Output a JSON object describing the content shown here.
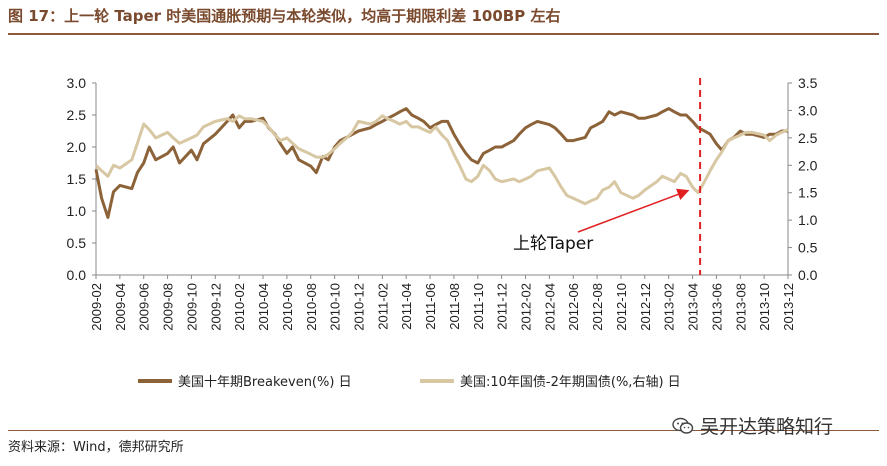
{
  "header": {
    "title": "图 17：上一轮 Taper 时美国通胀预期与本轮类似，均高于期限利差 100BP 左右"
  },
  "footer": {
    "source": "资料来源：Wind，德邦研究所",
    "watermark": "吴开达策略知行",
    "watermark_icon": "wechat-icon"
  },
  "colors": {
    "brand": "#8b5a3c",
    "series_dark": "#8c6239",
    "series_light": "#d8c7a3",
    "marker_line": "#e02020",
    "arrow": "#e02020"
  },
  "chart_data": {
    "type": "line",
    "title": "",
    "xlabel": "",
    "ylabel": "",
    "x_range": [
      "2009-02",
      "2013-12"
    ],
    "x_ticks": [
      "2009-02",
      "2009-04",
      "2009-06",
      "2009-08",
      "2009-10",
      "2009-12",
      "2010-02",
      "2010-04",
      "2010-06",
      "2010-08",
      "2010-10",
      "2010-12",
      "2011-02",
      "2011-04",
      "2011-06",
      "2011-08",
      "2011-10",
      "2011-12",
      "2012-02",
      "2012-04",
      "2012-06",
      "2012-08",
      "2012-10",
      "2012-12",
      "2013-02",
      "2013-04",
      "2013-06",
      "2013-08",
      "2013-10",
      "2013-12"
    ],
    "y_left": {
      "ylim": [
        0.0,
        3.0
      ],
      "ticks": [
        "0.0",
        "0.5",
        "1.0",
        "1.5",
        "2.0",
        "2.5",
        "3.0"
      ]
    },
    "y_right": {
      "ylim": [
        0.0,
        3.5
      ],
      "ticks": [
        "0.0",
        "0.5",
        "1.0",
        "1.5",
        "2.0",
        "2.5",
        "3.0",
        "3.5"
      ]
    },
    "grid": false,
    "legend_position": "bottom",
    "series": [
      {
        "name": "美国十年期Breakeven(%) 日",
        "axis": "left",
        "color": "#8c6239",
        "points": [
          [
            "2009-02",
            1.65
          ],
          [
            "2009-02-15",
            1.2
          ],
          [
            "2009-03",
            0.9
          ],
          [
            "2009-03-15",
            1.3
          ],
          [
            "2009-04",
            1.4
          ],
          [
            "2009-05",
            1.35
          ],
          [
            "2009-05-15",
            1.6
          ],
          [
            "2009-06",
            1.75
          ],
          [
            "2009-06-15",
            2.0
          ],
          [
            "2009-07",
            1.8
          ],
          [
            "2009-08",
            1.9
          ],
          [
            "2009-08-15",
            2.0
          ],
          [
            "2009-09",
            1.75
          ],
          [
            "2009-10",
            1.95
          ],
          [
            "2009-10-15",
            1.8
          ],
          [
            "2009-11",
            2.05
          ],
          [
            "2009-12",
            2.2
          ],
          [
            "2010-01",
            2.4
          ],
          [
            "2010-01-15",
            2.5
          ],
          [
            "2010-02",
            2.3
          ],
          [
            "2010-02-15",
            2.4
          ],
          [
            "2010-03",
            2.4
          ],
          [
            "2010-04",
            2.45
          ],
          [
            "2010-04-15",
            2.3
          ],
          [
            "2010-05",
            2.2
          ],
          [
            "2010-05-15",
            2.05
          ],
          [
            "2010-06",
            1.9
          ],
          [
            "2010-06-15",
            2.0
          ],
          [
            "2010-07",
            1.8
          ],
          [
            "2010-08",
            1.7
          ],
          [
            "2010-08-15",
            1.6
          ],
          [
            "2010-09",
            1.85
          ],
          [
            "2010-09-15",
            1.8
          ],
          [
            "2010-10",
            2.0
          ],
          [
            "2010-10-15",
            2.1
          ],
          [
            "2010-11",
            2.15
          ],
          [
            "2010-12",
            2.25
          ],
          [
            "2011-01",
            2.3
          ],
          [
            "2011-01-15",
            2.35
          ],
          [
            "2011-02",
            2.4
          ],
          [
            "2011-02-15",
            2.45
          ],
          [
            "2011-03",
            2.5
          ],
          [
            "2011-03-15",
            2.55
          ],
          [
            "2011-04",
            2.6
          ],
          [
            "2011-04-15",
            2.5
          ],
          [
            "2011-05",
            2.45
          ],
          [
            "2011-05-15",
            2.4
          ],
          [
            "2011-06",
            2.3
          ],
          [
            "2011-06-15",
            2.35
          ],
          [
            "2011-07",
            2.4
          ],
          [
            "2011-07-15",
            2.4
          ],
          [
            "2011-08",
            2.2
          ],
          [
            "2011-08-15",
            2.05
          ],
          [
            "2011-09",
            1.9
          ],
          [
            "2011-09-15",
            1.8
          ],
          [
            "2011-10",
            1.75
          ],
          [
            "2011-10-15",
            1.9
          ],
          [
            "2011-11",
            1.95
          ],
          [
            "2011-11-15",
            2.0
          ],
          [
            "2011-12",
            2.0
          ],
          [
            "2012-01",
            2.1
          ],
          [
            "2012-01-15",
            2.2
          ],
          [
            "2012-02",
            2.3
          ],
          [
            "2012-02-15",
            2.35
          ],
          [
            "2012-03",
            2.4
          ],
          [
            "2012-04",
            2.35
          ],
          [
            "2012-04-15",
            2.3
          ],
          [
            "2012-05",
            2.2
          ],
          [
            "2012-05-15",
            2.1
          ],
          [
            "2012-06",
            2.1
          ],
          [
            "2012-07",
            2.15
          ],
          [
            "2012-07-15",
            2.3
          ],
          [
            "2012-08",
            2.35
          ],
          [
            "2012-08-15",
            2.4
          ],
          [
            "2012-09",
            2.55
          ],
          [
            "2012-09-15",
            2.5
          ],
          [
            "2012-10",
            2.55
          ],
          [
            "2012-11",
            2.5
          ],
          [
            "2012-11-15",
            2.45
          ],
          [
            "2012-12",
            2.45
          ],
          [
            "2013-01",
            2.5
          ],
          [
            "2013-01-15",
            2.55
          ],
          [
            "2013-02",
            2.6
          ],
          [
            "2013-02-15",
            2.55
          ],
          [
            "2013-03",
            2.5
          ],
          [
            "2013-03-15",
            2.5
          ],
          [
            "2013-04",
            2.4
          ],
          [
            "2013-04-15",
            2.3
          ],
          [
            "2013-05",
            2.25
          ],
          [
            "2013-05-15",
            2.2
          ],
          [
            "2013-06",
            2.05
          ],
          [
            "2013-06-15",
            1.95
          ],
          [
            "2013-07",
            2.1
          ],
          [
            "2013-07-15",
            2.15
          ],
          [
            "2013-08",
            2.25
          ],
          [
            "2013-08-15",
            2.2
          ],
          [
            "2013-09",
            2.2
          ],
          [
            "2013-10",
            2.15
          ],
          [
            "2013-10-15",
            2.2
          ],
          [
            "2013-11",
            2.2
          ],
          [
            "2013-11-15",
            2.25
          ],
          [
            "2013-12",
            2.25
          ]
        ]
      },
      {
        "name": "美国:10年国债-2年期国债(%,右轴) 日",
        "axis": "right",
        "color": "#d8c7a3",
        "points": [
          [
            "2009-02",
            2.0
          ],
          [
            "2009-02-15",
            1.9
          ],
          [
            "2009-03",
            1.8
          ],
          [
            "2009-03-15",
            2.0
          ],
          [
            "2009-04",
            1.95
          ],
          [
            "2009-05",
            2.1
          ],
          [
            "2009-05-15",
            2.4
          ],
          [
            "2009-06",
            2.75
          ],
          [
            "2009-06-15",
            2.65
          ],
          [
            "2009-07",
            2.5
          ],
          [
            "2009-08",
            2.6
          ],
          [
            "2009-08-15",
            2.5
          ],
          [
            "2009-09",
            2.4
          ],
          [
            "2009-10",
            2.5
          ],
          [
            "2009-10-15",
            2.55
          ],
          [
            "2009-11",
            2.7
          ],
          [
            "2009-12",
            2.8
          ],
          [
            "2010-01",
            2.85
          ],
          [
            "2010-01-15",
            2.8
          ],
          [
            "2010-02",
            2.9
          ],
          [
            "2010-02-15",
            2.85
          ],
          [
            "2010-03",
            2.85
          ],
          [
            "2010-04",
            2.8
          ],
          [
            "2010-04-15",
            2.7
          ],
          [
            "2010-05",
            2.55
          ],
          [
            "2010-05-15",
            2.45
          ],
          [
            "2010-06",
            2.5
          ],
          [
            "2010-06-15",
            2.4
          ],
          [
            "2010-07",
            2.3
          ],
          [
            "2010-08",
            2.2
          ],
          [
            "2010-08-15",
            2.15
          ],
          [
            "2010-09",
            2.15
          ],
          [
            "2010-09-15",
            2.2
          ],
          [
            "2010-10",
            2.3
          ],
          [
            "2010-10-15",
            2.4
          ],
          [
            "2010-11",
            2.5
          ],
          [
            "2010-11-15",
            2.6
          ],
          [
            "2010-12",
            2.8
          ],
          [
            "2011-01",
            2.75
          ],
          [
            "2011-01-15",
            2.8
          ],
          [
            "2011-02",
            2.9
          ],
          [
            "2011-02-15",
            2.85
          ],
          [
            "2011-03",
            2.8
          ],
          [
            "2011-03-15",
            2.75
          ],
          [
            "2011-04",
            2.8
          ],
          [
            "2011-04-15",
            2.7
          ],
          [
            "2011-05",
            2.7
          ],
          [
            "2011-05-15",
            2.65
          ],
          [
            "2011-06",
            2.6
          ],
          [
            "2011-06-15",
            2.7
          ],
          [
            "2011-07",
            2.55
          ],
          [
            "2011-07-15",
            2.45
          ],
          [
            "2011-08",
            2.2
          ],
          [
            "2011-08-15",
            2.0
          ],
          [
            "2011-09",
            1.75
          ],
          [
            "2011-09-15",
            1.7
          ],
          [
            "2011-10",
            1.8
          ],
          [
            "2011-10-15",
            2.0
          ],
          [
            "2011-11",
            1.9
          ],
          [
            "2011-11-15",
            1.75
          ],
          [
            "2011-12",
            1.7
          ],
          [
            "2012-01",
            1.75
          ],
          [
            "2012-01-15",
            1.7
          ],
          [
            "2012-02",
            1.75
          ],
          [
            "2012-02-15",
            1.8
          ],
          [
            "2012-03",
            1.9
          ],
          [
            "2012-04",
            1.95
          ],
          [
            "2012-04-15",
            1.8
          ],
          [
            "2012-05",
            1.6
          ],
          [
            "2012-05-15",
            1.45
          ],
          [
            "2012-06",
            1.4
          ],
          [
            "2012-07",
            1.3
          ],
          [
            "2012-07-15",
            1.35
          ],
          [
            "2012-08",
            1.4
          ],
          [
            "2012-08-15",
            1.55
          ],
          [
            "2012-09",
            1.6
          ],
          [
            "2012-09-15",
            1.7
          ],
          [
            "2012-10",
            1.5
          ],
          [
            "2012-11",
            1.4
          ],
          [
            "2012-11-15",
            1.45
          ],
          [
            "2012-12",
            1.55
          ],
          [
            "2013-01",
            1.7
          ],
          [
            "2013-01-15",
            1.8
          ],
          [
            "2013-02",
            1.75
          ],
          [
            "2013-02-15",
            1.7
          ],
          [
            "2013-03",
            1.85
          ],
          [
            "2013-03-15",
            1.8
          ],
          [
            "2013-04",
            1.6
          ],
          [
            "2013-04-15",
            1.5
          ],
          [
            "2013-05",
            1.7
          ],
          [
            "2013-05-15",
            1.9
          ],
          [
            "2013-06",
            2.1
          ],
          [
            "2013-06-15",
            2.25
          ],
          [
            "2013-07",
            2.45
          ],
          [
            "2013-07-15",
            2.5
          ],
          [
            "2013-08",
            2.55
          ],
          [
            "2013-08-15",
            2.6
          ],
          [
            "2013-09",
            2.6
          ],
          [
            "2013-10",
            2.55
          ],
          [
            "2013-10-15",
            2.45
          ],
          [
            "2013-11",
            2.55
          ],
          [
            "2013-11-15",
            2.6
          ],
          [
            "2013-12",
            2.65
          ]
        ]
      }
    ],
    "vline": {
      "x": "2013-04-20",
      "style": "dashed",
      "color": "#e02020"
    },
    "annotation": {
      "text": "上轮Taper",
      "arrow_to": [
        "2013-04-01",
        1.6
      ],
      "axis": "right"
    }
  }
}
